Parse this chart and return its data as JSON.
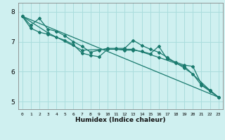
{
  "xlabel": "Humidex (Indice chaleur)",
  "bg_color": "#cff0f0",
  "grid_color": "#aadddd",
  "line_color": "#1a7a6e",
  "xlim": [
    -0.5,
    23.5
  ],
  "ylim": [
    4.75,
    8.3
  ],
  "yticks": [
    5,
    6,
    7,
    8
  ],
  "xticks": [
    0,
    1,
    2,
    3,
    4,
    5,
    6,
    7,
    8,
    9,
    10,
    11,
    12,
    13,
    14,
    15,
    16,
    17,
    18,
    19,
    20,
    21,
    22,
    23
  ],
  "series": [
    {
      "x": [
        0,
        1,
        2,
        3,
        4,
        5,
        6,
        7,
        8,
        9,
        10,
        11,
        12,
        13,
        14,
        15,
        16,
        17,
        18,
        19,
        20,
        21,
        22,
        23
      ],
      "y": [
        7.85,
        7.55,
        7.78,
        7.42,
        7.35,
        7.2,
        7.0,
        6.85,
        6.65,
        6.72,
        6.78,
        6.78,
        6.78,
        7.05,
        6.88,
        6.75,
        6.65,
        6.48,
        6.3,
        6.12,
        5.92,
        5.55,
        5.35,
        5.15
      ]
    },
    {
      "x": [
        0,
        1,
        2,
        3,
        4,
        5,
        6,
        7,
        8,
        9,
        10,
        11,
        12,
        13,
        14,
        15,
        16,
        17,
        18,
        19,
        20,
        21,
        22,
        23
      ],
      "y": [
        7.85,
        7.45,
        7.32,
        7.25,
        7.15,
        7.05,
        6.9,
        6.62,
        6.55,
        6.5,
        6.75,
        6.75,
        6.72,
        6.72,
        6.68,
        6.6,
        6.85,
        6.42,
        6.32,
        6.22,
        6.18,
        5.58,
        5.38,
        5.15
      ]
    },
    {
      "x": [
        0,
        3,
        7,
        10,
        13,
        16,
        19,
        22,
        23
      ],
      "y": [
        7.85,
        7.3,
        6.72,
        6.75,
        6.75,
        6.48,
        6.18,
        5.38,
        5.15
      ]
    },
    {
      "x": [
        0,
        23
      ],
      "y": [
        7.85,
        5.15
      ]
    }
  ]
}
